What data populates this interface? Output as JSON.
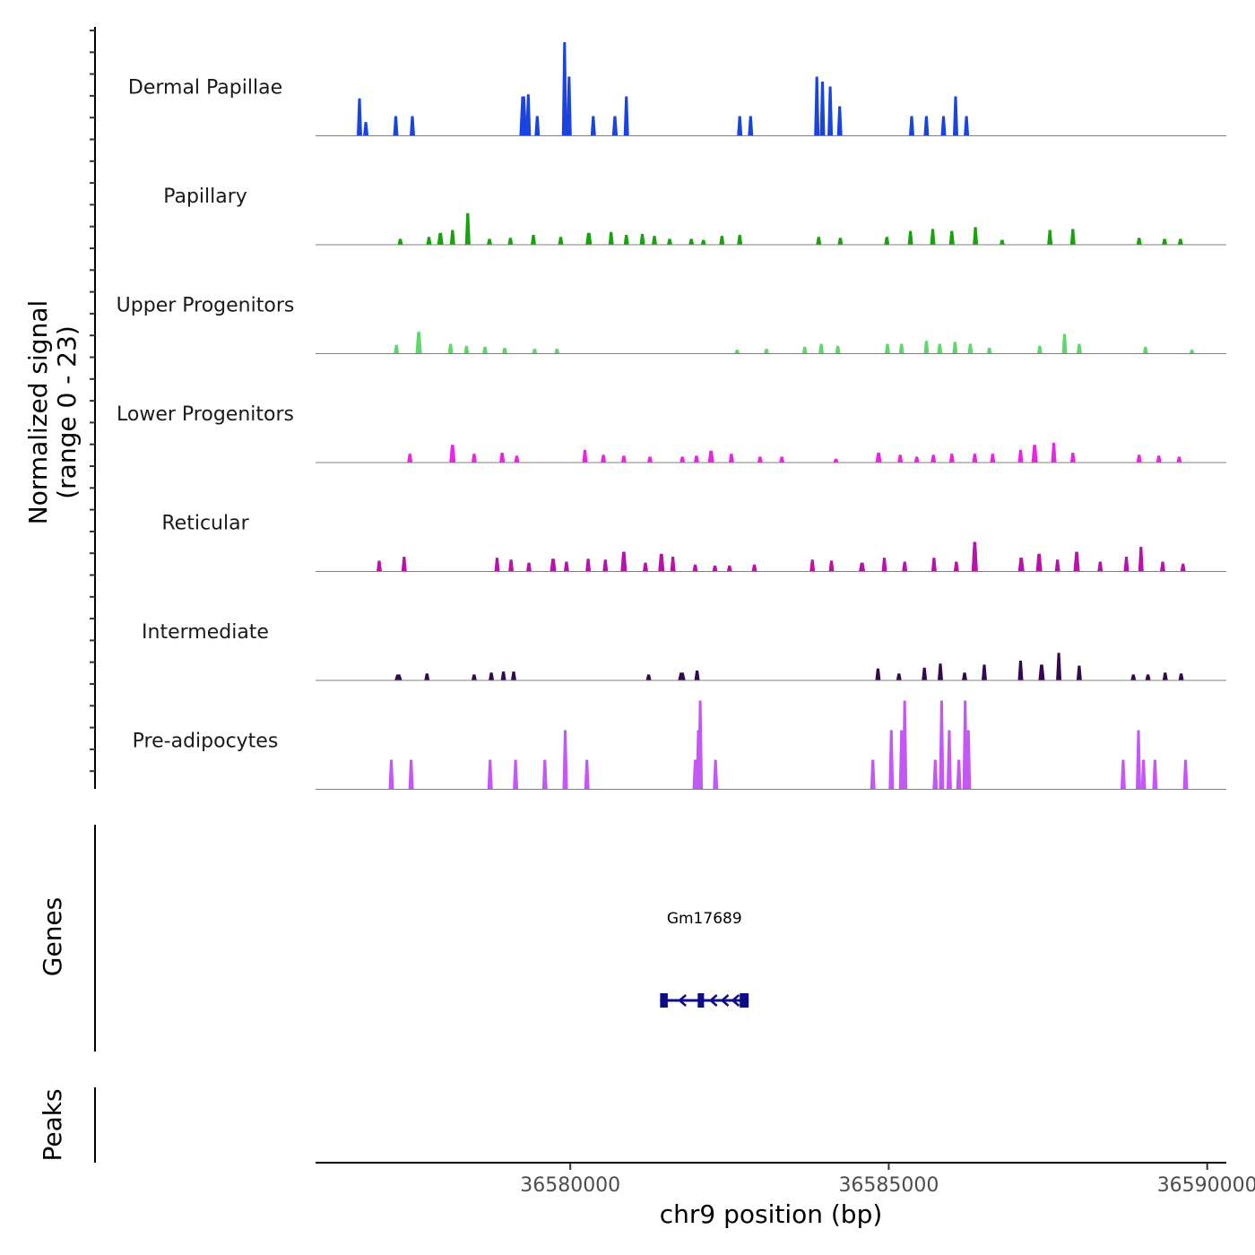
{
  "chart_data": {
    "type": "area",
    "subtype": "genome-browser coverage plot",
    "ylabel": "Normalized signal\n(range 0 - 23)",
    "ylabel_lines": [
      "Normalized signal",
      "(range 0 - 23)"
    ],
    "y_range": [
      0,
      23
    ],
    "xlabel": "chr9 position (bp)",
    "xlim": [
      36576000,
      36590300
    ],
    "x_ticks": [
      36580000,
      36585000,
      36590000
    ],
    "x_tick_labels": [
      "36580000",
      "36585000",
      "36590000"
    ],
    "tracks": [
      {
        "name": "Dermal Papillae",
        "color": "#1a44e0",
        "peaks": [
          [
            36576690,
            5,
            0.38
          ],
          [
            36576790,
            8,
            0.14
          ],
          [
            36577260,
            10,
            0.2
          ],
          [
            36577520,
            8,
            0.2
          ],
          [
            36579260,
            30,
            0.4
          ],
          [
            36579340,
            10,
            0.42
          ],
          [
            36579480,
            12,
            0.2
          ],
          [
            36579910,
            15,
            0.95
          ],
          [
            36579980,
            10,
            0.6
          ],
          [
            36580360,
            15,
            0.2
          ],
          [
            36580700,
            22,
            0.2
          ],
          [
            36580880,
            15,
            0.4
          ],
          [
            36582660,
            12,
            0.2
          ],
          [
            36582830,
            10,
            0.2
          ],
          [
            36583870,
            12,
            0.6
          ],
          [
            36583960,
            8,
            0.55
          ],
          [
            36584080,
            10,
            0.5
          ],
          [
            36584230,
            15,
            0.3
          ],
          [
            36585360,
            10,
            0.2
          ],
          [
            36585590,
            10,
            0.2
          ],
          [
            36585860,
            8,
            0.2
          ],
          [
            36586050,
            15,
            0.4
          ],
          [
            36586220,
            15,
            0.2
          ]
        ]
      },
      {
        "name": "Papillary",
        "color": "#16a40a",
        "peaks": [
          [
            36577330,
            10,
            0.06
          ],
          [
            36577780,
            15,
            0.08
          ],
          [
            36577960,
            25,
            0.12
          ],
          [
            36578150,
            15,
            0.15
          ],
          [
            36578390,
            22,
            0.32
          ],
          [
            36578730,
            15,
            0.06
          ],
          [
            36579060,
            15,
            0.07
          ],
          [
            36579420,
            20,
            0.1
          ],
          [
            36579850,
            15,
            0.08
          ],
          [
            36580290,
            25,
            0.12
          ],
          [
            36580640,
            20,
            0.13
          ],
          [
            36580880,
            15,
            0.1
          ],
          [
            36581130,
            20,
            0.11
          ],
          [
            36581320,
            15,
            0.09
          ],
          [
            36581560,
            15,
            0.06
          ],
          [
            36581900,
            10,
            0.06
          ],
          [
            36582090,
            10,
            0.05
          ],
          [
            36582380,
            20,
            0.09
          ],
          [
            36582660,
            18,
            0.1
          ],
          [
            36583900,
            20,
            0.08
          ],
          [
            36584240,
            15,
            0.07
          ],
          [
            36584970,
            20,
            0.08
          ],
          [
            36585340,
            18,
            0.14
          ],
          [
            36585690,
            20,
            0.16
          ],
          [
            36585990,
            22,
            0.14
          ],
          [
            36586360,
            18,
            0.18
          ],
          [
            36586780,
            10,
            0.05
          ],
          [
            36587530,
            20,
            0.15
          ],
          [
            36587890,
            20,
            0.16
          ],
          [
            36588930,
            15,
            0.07
          ],
          [
            36589330,
            12,
            0.06
          ],
          [
            36589580,
            10,
            0.06
          ]
        ]
      },
      {
        "name": "Upper Progenitors",
        "color": "#5fd86b",
        "peaks": [
          [
            36577270,
            18,
            0.09
          ],
          [
            36577620,
            25,
            0.22
          ],
          [
            36578120,
            10,
            0.1
          ],
          [
            36578370,
            18,
            0.08
          ],
          [
            36578660,
            12,
            0.07
          ],
          [
            36578970,
            12,
            0.06
          ],
          [
            36579440,
            12,
            0.05
          ],
          [
            36579790,
            8,
            0.05
          ],
          [
            36582620,
            8,
            0.04
          ],
          [
            36583080,
            8,
            0.05
          ],
          [
            36583680,
            12,
            0.07
          ],
          [
            36583940,
            15,
            0.1
          ],
          [
            36584200,
            12,
            0.08
          ],
          [
            36584980,
            15,
            0.1
          ],
          [
            36585200,
            12,
            0.1
          ],
          [
            36585590,
            15,
            0.13
          ],
          [
            36585800,
            12,
            0.1
          ],
          [
            36586040,
            15,
            0.12
          ],
          [
            36586280,
            10,
            0.1
          ],
          [
            36586580,
            8,
            0.06
          ],
          [
            36587370,
            20,
            0.08
          ],
          [
            36587760,
            20,
            0.2
          ],
          [
            36587990,
            15,
            0.1
          ],
          [
            36589030,
            12,
            0.07
          ],
          [
            36589760,
            8,
            0.04
          ]
        ]
      },
      {
        "name": "Lower Progenitors",
        "color": "#ec22e4",
        "peaks": [
          [
            36577480,
            18,
            0.09
          ],
          [
            36578150,
            25,
            0.18
          ],
          [
            36578490,
            15,
            0.09
          ],
          [
            36578930,
            22,
            0.1
          ],
          [
            36579160,
            15,
            0.07
          ],
          [
            36580230,
            20,
            0.13
          ],
          [
            36580520,
            15,
            0.08
          ],
          [
            36580840,
            15,
            0.07
          ],
          [
            36581250,
            18,
            0.06
          ],
          [
            36581760,
            15,
            0.06
          ],
          [
            36581980,
            15,
            0.07
          ],
          [
            36582210,
            25,
            0.12
          ],
          [
            36582530,
            15,
            0.09
          ],
          [
            36582980,
            15,
            0.06
          ],
          [
            36583320,
            15,
            0.06
          ],
          [
            36584170,
            10,
            0.04
          ],
          [
            36584840,
            25,
            0.1
          ],
          [
            36585180,
            15,
            0.08
          ],
          [
            36585440,
            12,
            0.06
          ],
          [
            36585700,
            15,
            0.08
          ],
          [
            36585990,
            20,
            0.09
          ],
          [
            36586350,
            15,
            0.09
          ],
          [
            36586630,
            12,
            0.09
          ],
          [
            36587070,
            18,
            0.13
          ],
          [
            36587290,
            25,
            0.18
          ],
          [
            36587590,
            20,
            0.2
          ],
          [
            36587890,
            18,
            0.1
          ],
          [
            36588930,
            12,
            0.08
          ],
          [
            36589240,
            12,
            0.07
          ],
          [
            36589560,
            8,
            0.06
          ]
        ]
      },
      {
        "name": "Reticular",
        "color": "#b912aa",
        "peaks": [
          [
            36577000,
            20,
            0.11
          ],
          [
            36577390,
            20,
            0.15
          ],
          [
            36578850,
            18,
            0.14
          ],
          [
            36579070,
            20,
            0.12
          ],
          [
            36579350,
            12,
            0.09
          ],
          [
            36579730,
            25,
            0.13
          ],
          [
            36579940,
            15,
            0.1
          ],
          [
            36580280,
            20,
            0.13
          ],
          [
            36580550,
            20,
            0.12
          ],
          [
            36580840,
            25,
            0.2
          ],
          [
            36581180,
            20,
            0.09
          ],
          [
            36581430,
            25,
            0.18
          ],
          [
            36581610,
            20,
            0.15
          ],
          [
            36581960,
            12,
            0.07
          ],
          [
            36582270,
            12,
            0.06
          ],
          [
            36582500,
            12,
            0.06
          ],
          [
            36582890,
            12,
            0.07
          ],
          [
            36583800,
            15,
            0.12
          ],
          [
            36584100,
            20,
            0.11
          ],
          [
            36584580,
            25,
            0.09
          ],
          [
            36584930,
            20,
            0.14
          ],
          [
            36585250,
            15,
            0.1
          ],
          [
            36585710,
            20,
            0.14
          ],
          [
            36586060,
            15,
            0.1
          ],
          [
            36586350,
            25,
            0.3
          ],
          [
            36587080,
            25,
            0.14
          ],
          [
            36587360,
            25,
            0.18
          ],
          [
            36587650,
            20,
            0.12
          ],
          [
            36587950,
            25,
            0.2
          ],
          [
            36588320,
            15,
            0.1
          ],
          [
            36588730,
            20,
            0.15
          ],
          [
            36588960,
            15,
            0.25
          ],
          [
            36589300,
            20,
            0.1
          ],
          [
            36589620,
            10,
            0.08
          ]
        ]
      },
      {
        "name": "Intermediate",
        "color": "#35094f",
        "peaks": [
          [
            36577300,
            30,
            0.06
          ],
          [
            36577750,
            10,
            0.07
          ],
          [
            36578490,
            10,
            0.06
          ],
          [
            36578760,
            15,
            0.08
          ],
          [
            36578950,
            10,
            0.09
          ],
          [
            36579110,
            10,
            0.09
          ],
          [
            36581230,
            10,
            0.06
          ],
          [
            36581750,
            30,
            0.08
          ],
          [
            36581990,
            15,
            0.1
          ],
          [
            36584830,
            20,
            0.12
          ],
          [
            36585160,
            10,
            0.07
          ],
          [
            36585560,
            15,
            0.13
          ],
          [
            36585810,
            20,
            0.17
          ],
          [
            36586190,
            12,
            0.08
          ],
          [
            36586500,
            15,
            0.16
          ],
          [
            36587070,
            20,
            0.2
          ],
          [
            36587400,
            25,
            0.16
          ],
          [
            36587670,
            20,
            0.28
          ],
          [
            36587990,
            20,
            0.15
          ],
          [
            36588840,
            10,
            0.06
          ],
          [
            36589070,
            12,
            0.06
          ],
          [
            36589340,
            15,
            0.08
          ],
          [
            36589590,
            10,
            0.07
          ]
        ]
      },
      {
        "name": "Pre-adipocytes",
        "color": "#c458f7",
        "peaks": [
          [
            36577190,
            6,
            0.3
          ],
          [
            36577500,
            5,
            0.3
          ],
          [
            36578740,
            5,
            0.3
          ],
          [
            36579140,
            8,
            0.3
          ],
          [
            36579600,
            5,
            0.3
          ],
          [
            36579920,
            10,
            0.6
          ],
          [
            36580260,
            6,
            0.3
          ],
          [
            36582040,
            4,
            0.9
          ],
          [
            36582010,
            10,
            0.6
          ],
          [
            36581960,
            8,
            0.3
          ],
          [
            36582280,
            5,
            0.3
          ],
          [
            36584750,
            5,
            0.3
          ],
          [
            36585040,
            6,
            0.6
          ],
          [
            36585250,
            5,
            0.9
          ],
          [
            36585200,
            12,
            0.6
          ],
          [
            36585730,
            10,
            0.3
          ],
          [
            36585830,
            6,
            0.9
          ],
          [
            36585950,
            10,
            0.6
          ],
          [
            36586100,
            6,
            0.3
          ],
          [
            36586200,
            5,
            0.9
          ],
          [
            36586250,
            8,
            0.6
          ],
          [
            36588680,
            5,
            0.3
          ],
          [
            36588920,
            6,
            0.6
          ],
          [
            36589000,
            5,
            0.3
          ],
          [
            36589180,
            5,
            0.3
          ],
          [
            36589660,
            3,
            0.3
          ]
        ]
      }
    ],
    "genes": [
      {
        "name": "Gm17689",
        "strand": "-",
        "start": 36581410,
        "end": 36582800,
        "exons": [
          [
            36581410,
            36581530
          ],
          [
            36582000,
            36582100
          ],
          [
            36582660,
            36582800
          ]
        ],
        "color": "#0d0d85"
      }
    ],
    "panel_labels": {
      "genes": "Genes",
      "peaks": "Peaks"
    }
  }
}
